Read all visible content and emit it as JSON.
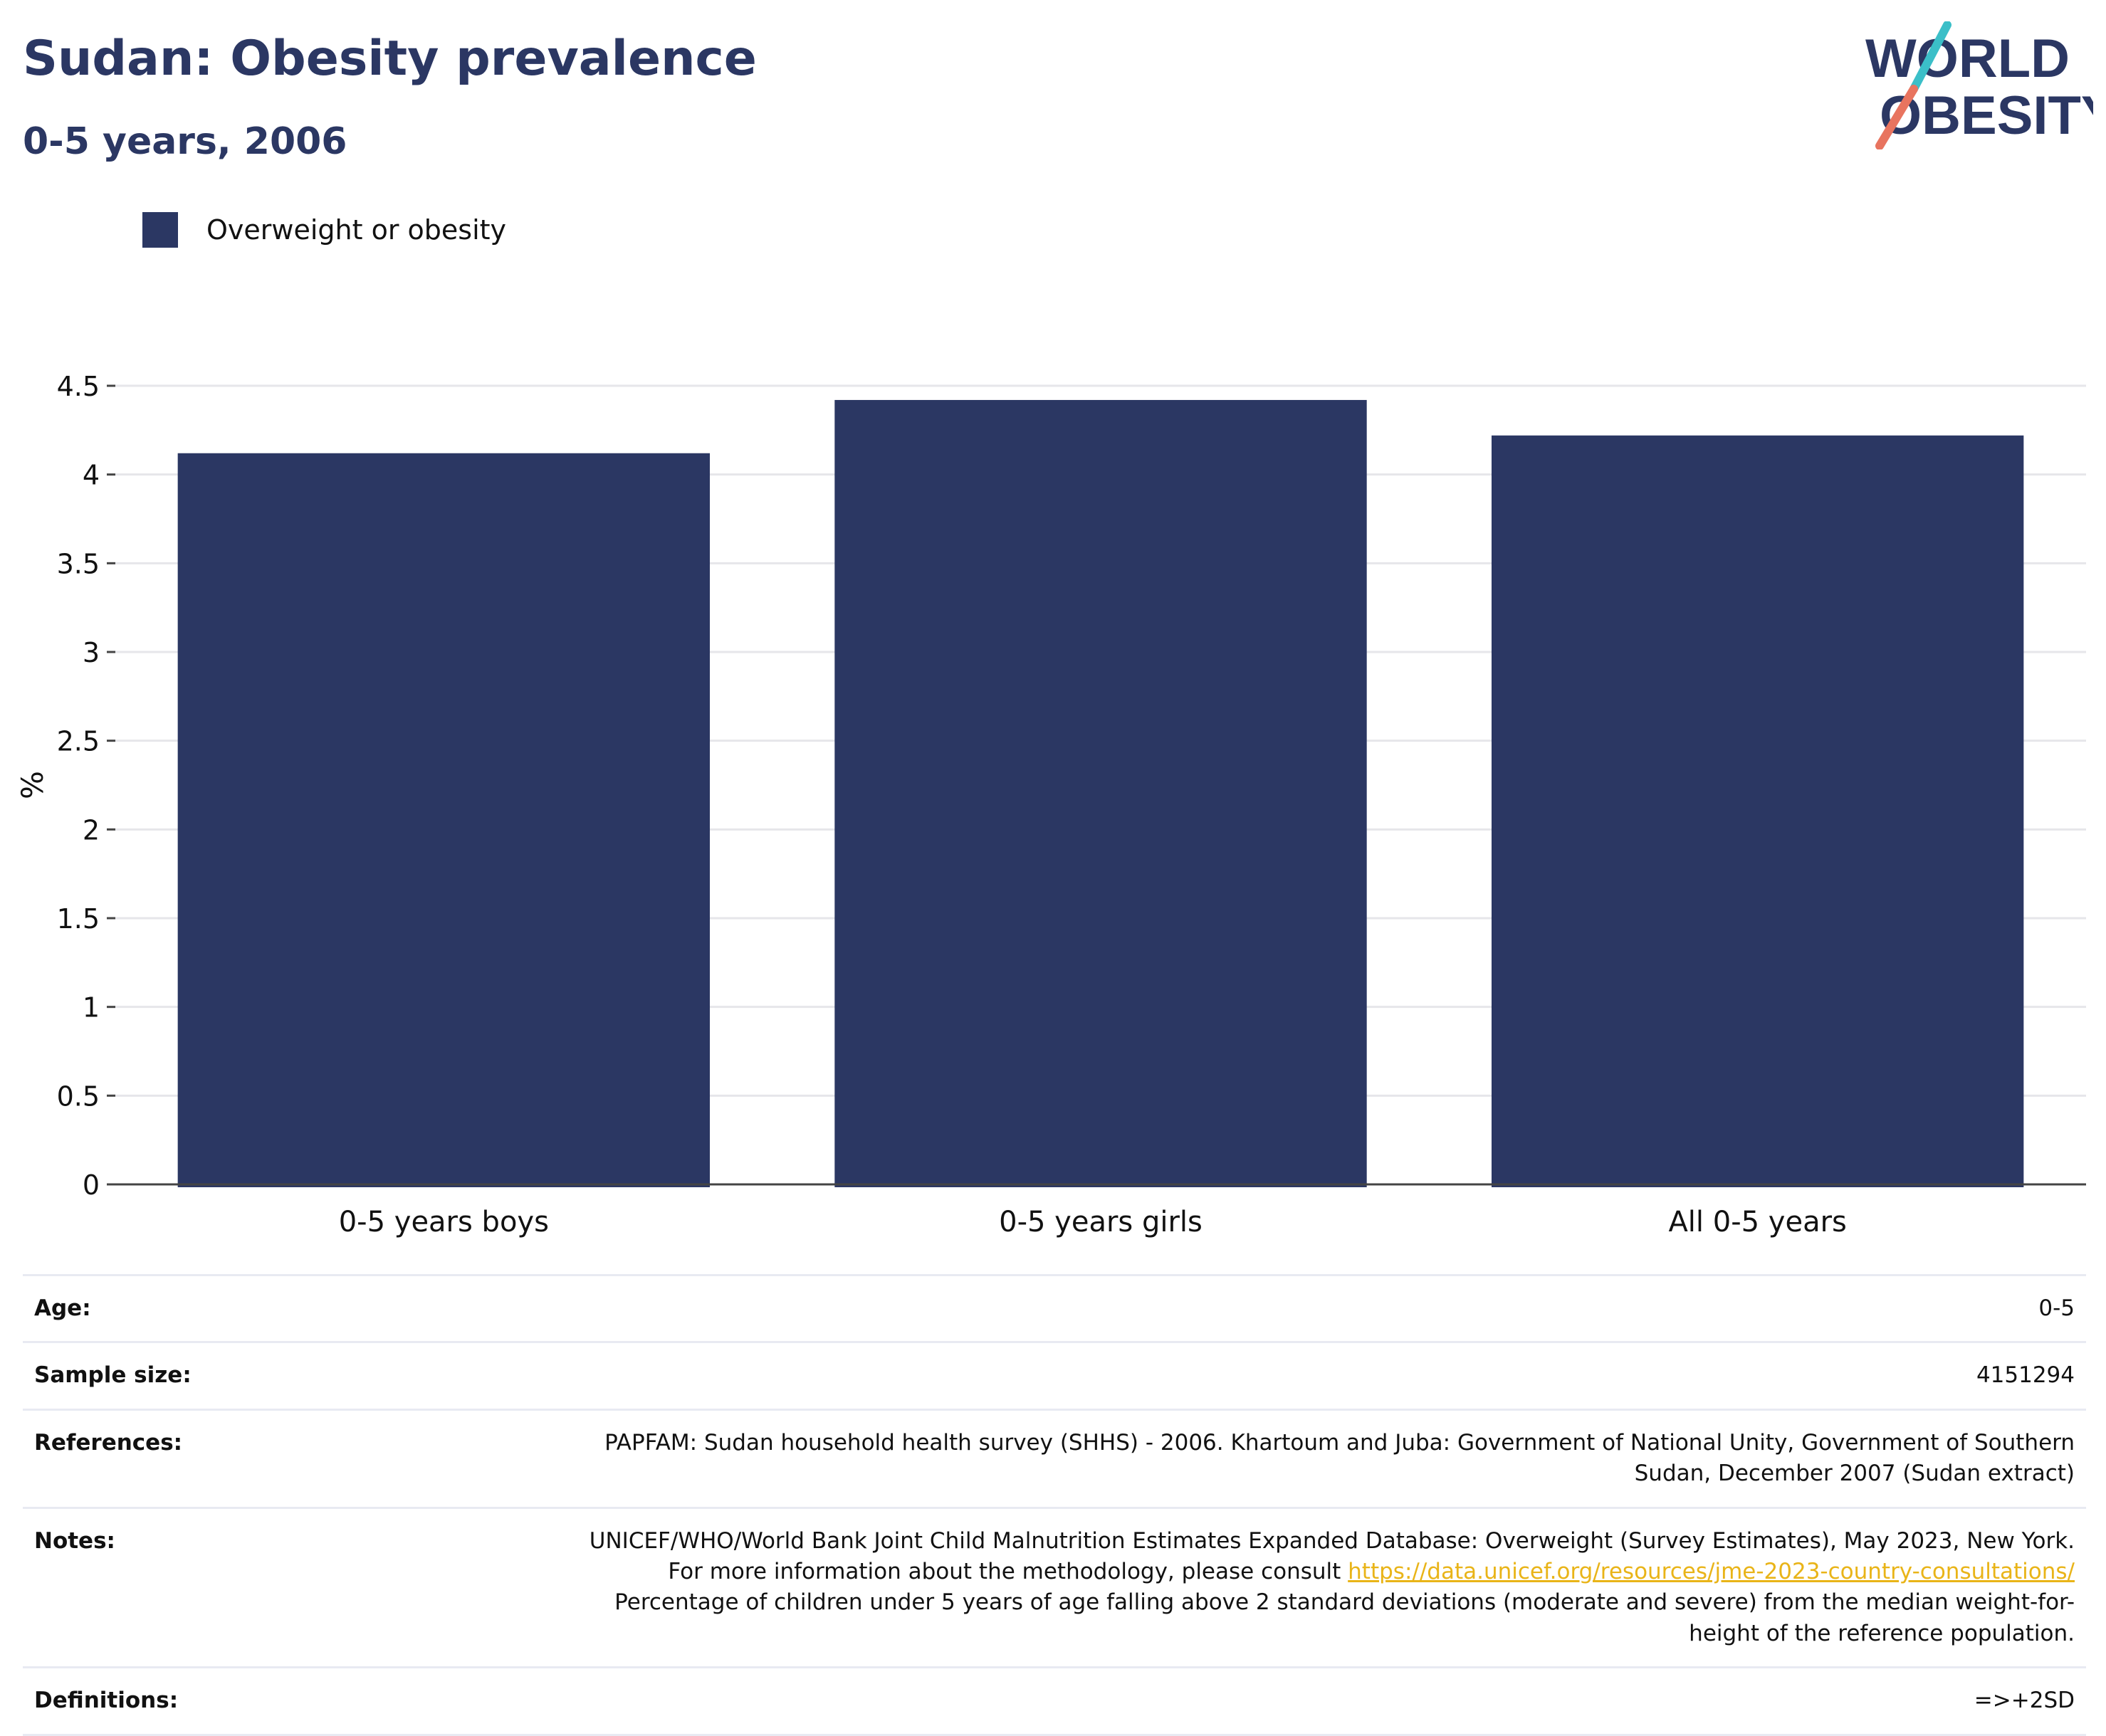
{
  "header": {
    "title": "Sudan: Obesity prevalence",
    "subtitle": "0-5 years, 2006"
  },
  "logo": {
    "line1": "WORLD",
    "line2": "OBESITY",
    "colors": {
      "navy": "#2b3763",
      "teal": "#3bbfc8",
      "coral": "#e8745f"
    }
  },
  "legend": {
    "label": "Overweight or obesity",
    "color": "#2b3763"
  },
  "chart_data": {
    "type": "bar",
    "categories": [
      "0-5 years boys",
      "0-5 years girls",
      "All 0-5 years"
    ],
    "series": [
      {
        "name": "Overweight or obesity",
        "values": [
          4.12,
          4.42,
          4.22
        ],
        "color": "#2b3763"
      }
    ],
    "title": "Sudan: Obesity prevalence",
    "subtitle": "0-5 years, 2006",
    "xlabel": "",
    "ylabel": "%",
    "ylim": [
      0,
      4.5
    ],
    "yticks": [
      0,
      0.5,
      1,
      1.5,
      2,
      2.5,
      3,
      3.5,
      4,
      4.5
    ],
    "ytick_labels": [
      "0",
      "0.5",
      "1",
      "1.5",
      "2",
      "2.5",
      "3",
      "3.5",
      "4",
      "4.5"
    ],
    "grid": true,
    "legend_position": "top-left"
  },
  "info": {
    "age": {
      "label": "Age:",
      "value": "0-5"
    },
    "sample_size": {
      "label": "Sample size:",
      "value": "4151294"
    },
    "references": {
      "label": "References:",
      "value": "PAPFAM: Sudan household health survey (SHHS) - 2006. Khartoum and Juba: Government of National Unity, Government of Southern Sudan, December 2007 (Sudan extract)"
    },
    "notes": {
      "label": "Notes:",
      "text_before": "UNICEF/WHO/World Bank Joint Child Malnutrition Estimates Expanded Database: Overweight (Survey Estimates), May 2023, New York. For more information about the methodology, please consult ",
      "link": "https://data.unicef.org/resources/jme-2023-country-consultations/",
      "text_after": "Percentage of children under 5 years of age falling above 2 standard deviations (moderate and severe) from the median weight-for-height of the reference population."
    },
    "definitions": {
      "label": "Definitions:",
      "value": "=>+2SD"
    }
  }
}
